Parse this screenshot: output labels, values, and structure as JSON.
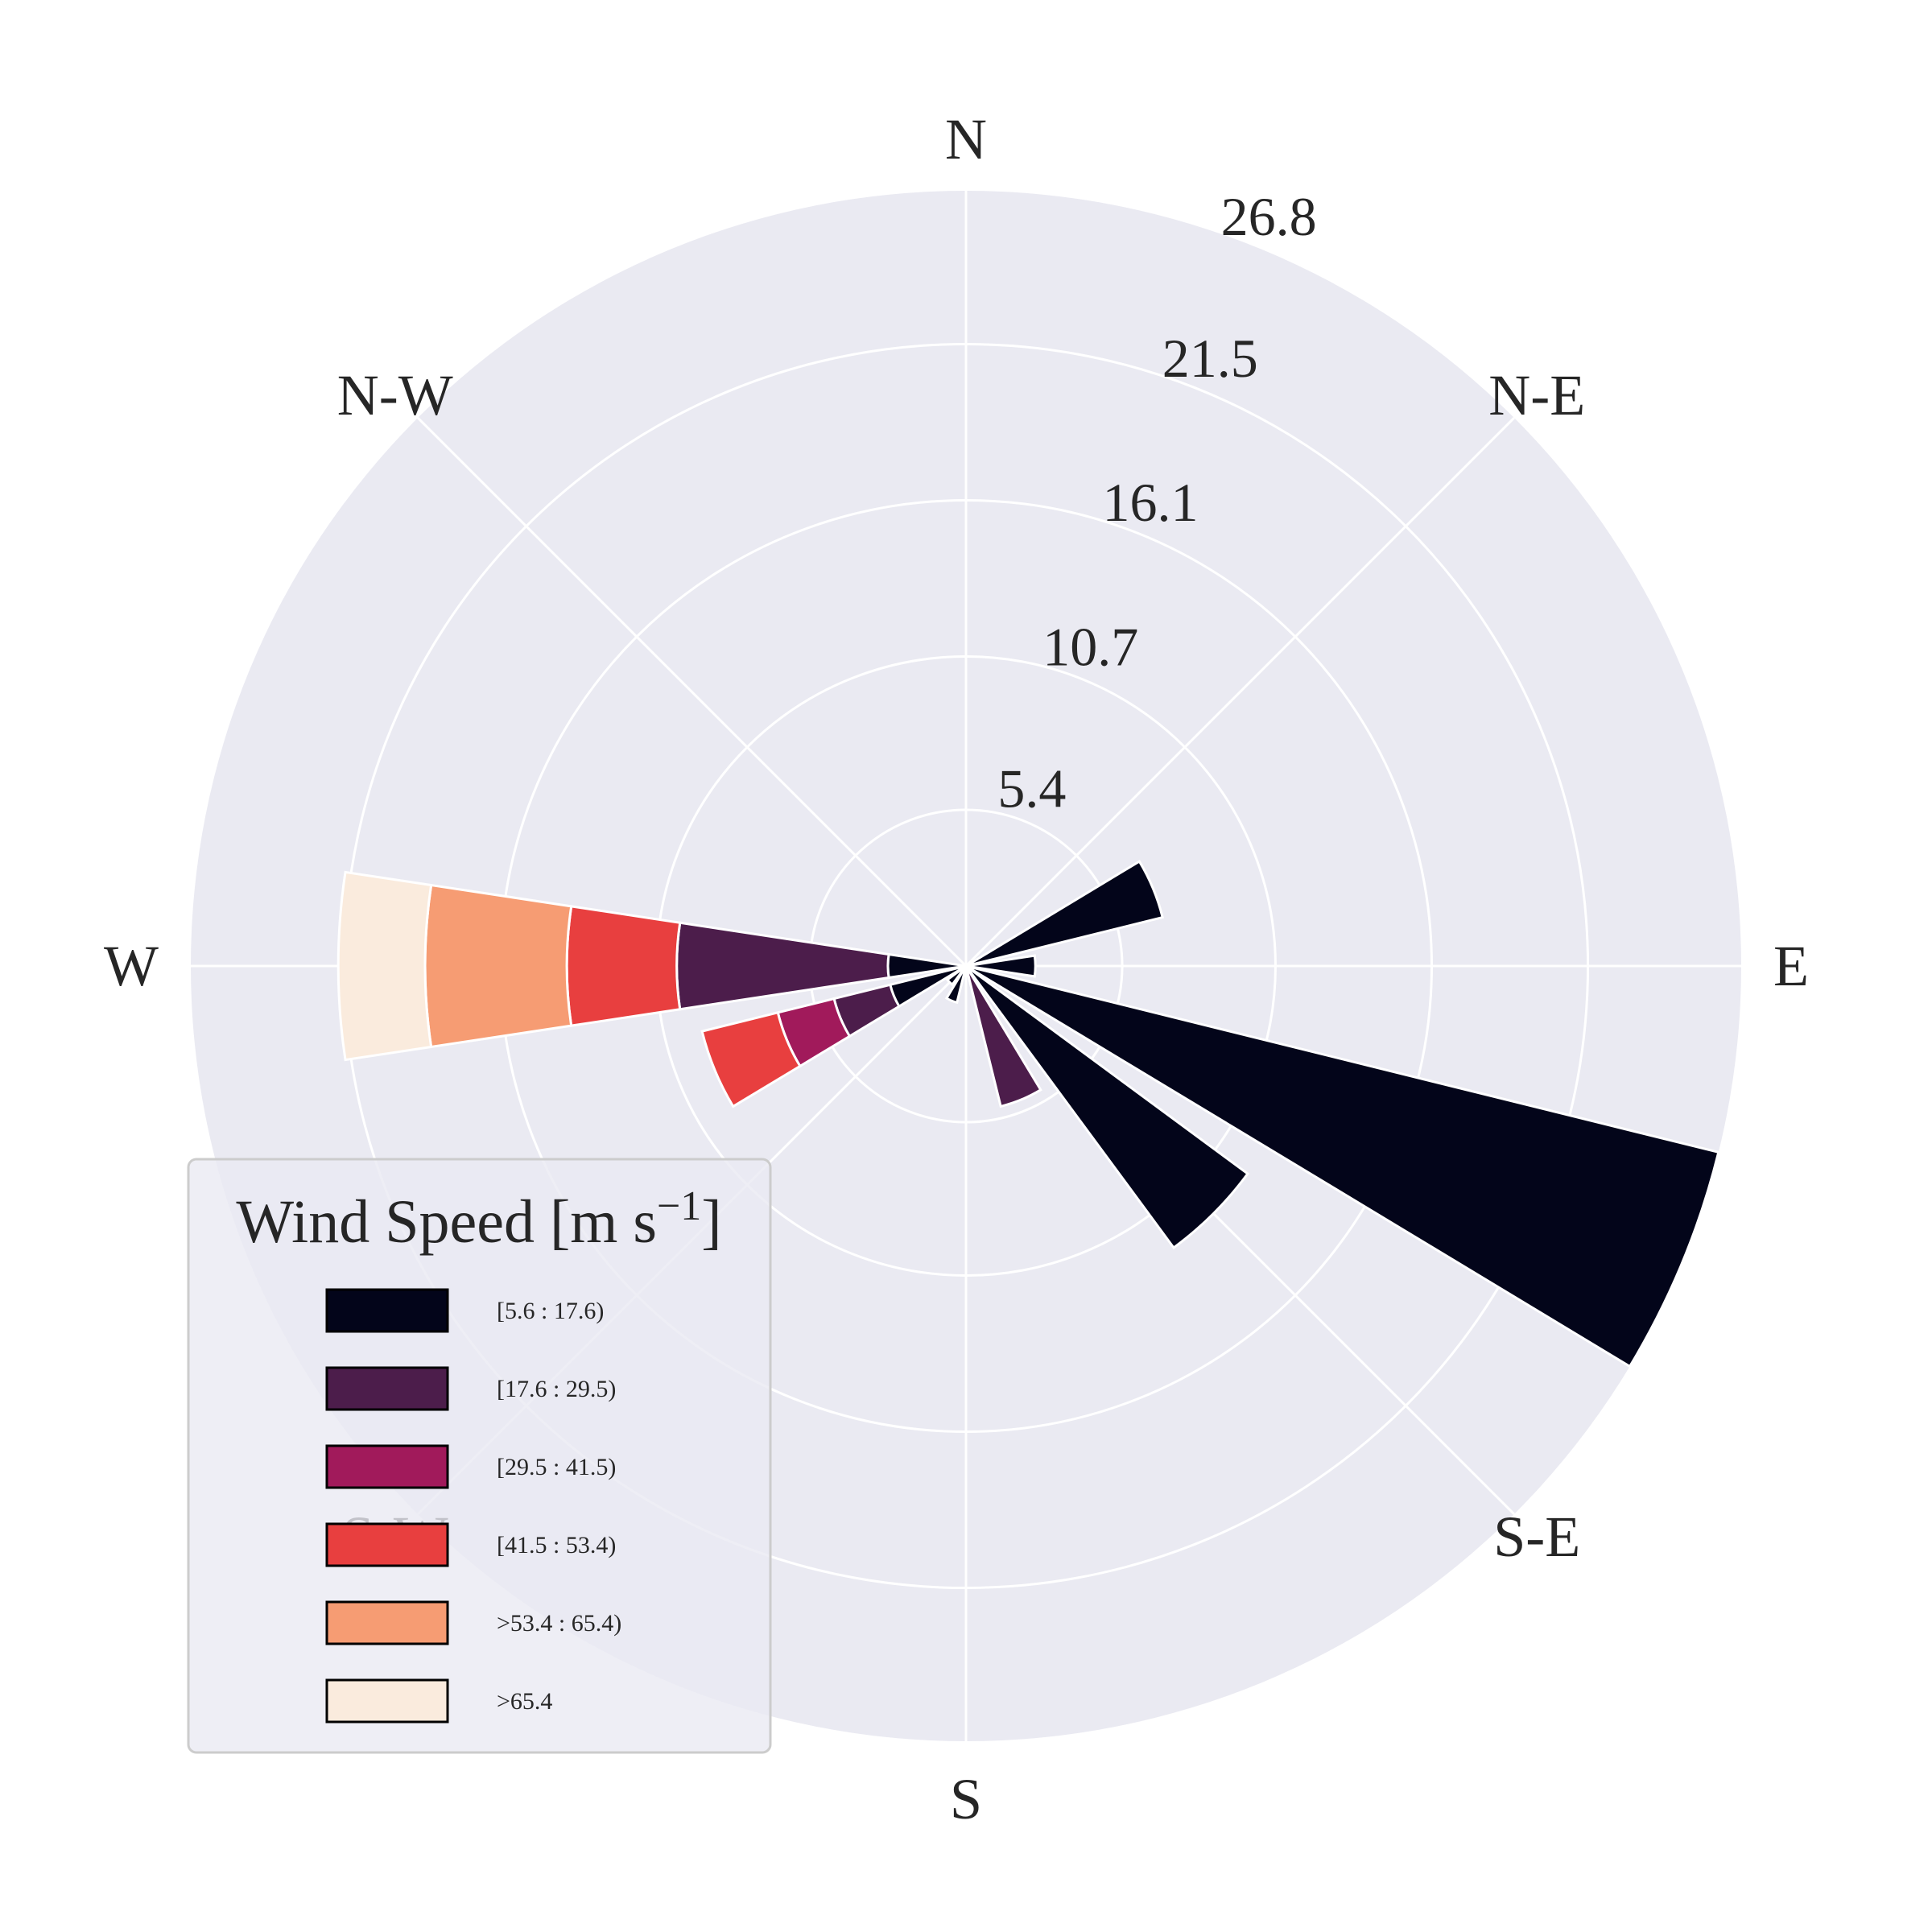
{
  "chart_data": {
    "type": "windrose",
    "directions": [
      "N",
      "N-E",
      "E",
      "S-E",
      "S",
      "S-W",
      "W",
      "N-W"
    ],
    "radial_ticks": [
      5.4,
      10.7,
      16.1,
      21.5,
      26.8
    ],
    "radial_tick_labels": [
      "5.4",
      "10.7",
      "16.1",
      "21.5",
      "26.8"
    ],
    "rmax": 26.8,
    "grid": true,
    "legend": {
      "title": "Wind Speed [m s",
      "title_superscript": "−1",
      "title_suffix": "]",
      "placement": "lower-left",
      "bins": [
        {
          "label": "[5.6 : 17.6)",
          "color": "#03051a"
        },
        {
          "label": "[17.6 : 29.5)",
          "color": "#4c1d4b"
        },
        {
          "label": "[29.5 : 41.5)",
          "color": "#a11a5b"
        },
        {
          "label": "[41.5 : 53.4)",
          "color": "#e83f3f"
        },
        {
          "label": ">53.4 : 65.4)",
          "color": "#f69c73"
        },
        {
          "label": ">65.4",
          "color": "#faebdd"
        }
      ]
    },
    "sectors": [
      {
        "angle_deg": 67.5,
        "values": [
          7.0,
          0,
          0,
          0,
          0,
          0
        ]
      },
      {
        "angle_deg": 90,
        "values": [
          2.4,
          0,
          0,
          0,
          0,
          0
        ]
      },
      {
        "angle_deg": 112.5,
        "values": [
          26.8,
          0,
          0,
          0,
          0,
          0
        ]
      },
      {
        "angle_deg": 135,
        "values": [
          12.1,
          0,
          0,
          0,
          0,
          0
        ]
      },
      {
        "angle_deg": 157.5,
        "values": [
          1.0,
          0,
          0,
          0,
          0,
          0
        ]
      },
      {
        "angle_deg": 157.5,
        "values": [
          0,
          5.0,
          0,
          0,
          0,
          0
        ]
      },
      {
        "angle_deg": 202.5,
        "values": [
          1.3,
          0,
          0,
          0,
          0,
          0
        ]
      },
      {
        "angle_deg": 225,
        "values": [
          0.8,
          0,
          0,
          0,
          0,
          0
        ]
      },
      {
        "angle_deg": 247.5,
        "values": [
          2.7,
          2.0,
          2.0,
          2.7,
          0,
          0
        ]
      },
      {
        "angle_deg": 270,
        "values": [
          2.7,
          7.3,
          0,
          3.8,
          4.9,
          3.0
        ]
      }
    ]
  }
}
